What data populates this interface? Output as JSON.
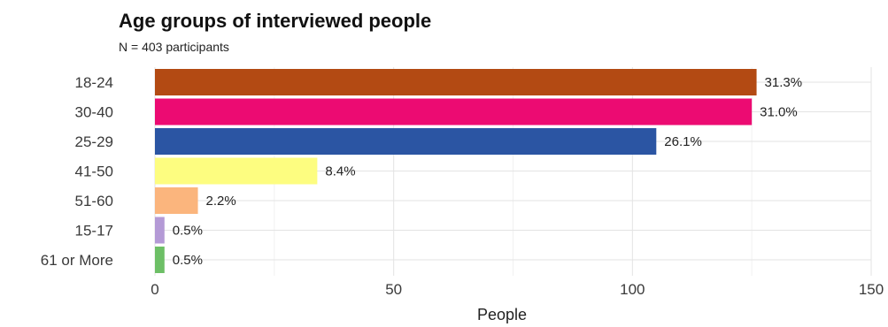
{
  "chart_data": {
    "type": "bar",
    "orientation": "horizontal",
    "title": "Age groups of interviewed people",
    "subtitle": "N = 403 participants",
    "xlabel": "People",
    "ylabel": "",
    "xlim": [
      0,
      150
    ],
    "x_ticks": [
      0,
      50,
      100,
      150
    ],
    "grid": true,
    "legend": "none",
    "categories": [
      "18-24",
      "30-40",
      "25-29",
      "41-50",
      "51-60",
      "15-17",
      "61 or More"
    ],
    "values": [
      126,
      125,
      105,
      34,
      9,
      2,
      2
    ],
    "labels": [
      "31.3%",
      "31.0%",
      "26.1%",
      "8.4%",
      "2.2%",
      "0.5%",
      "0.5%"
    ],
    "colors": [
      "#b34a13",
      "#ec0b72",
      "#2b55a3",
      "#fdfd80",
      "#fbb57d",
      "#b49ad6",
      "#6dbf66"
    ]
  }
}
